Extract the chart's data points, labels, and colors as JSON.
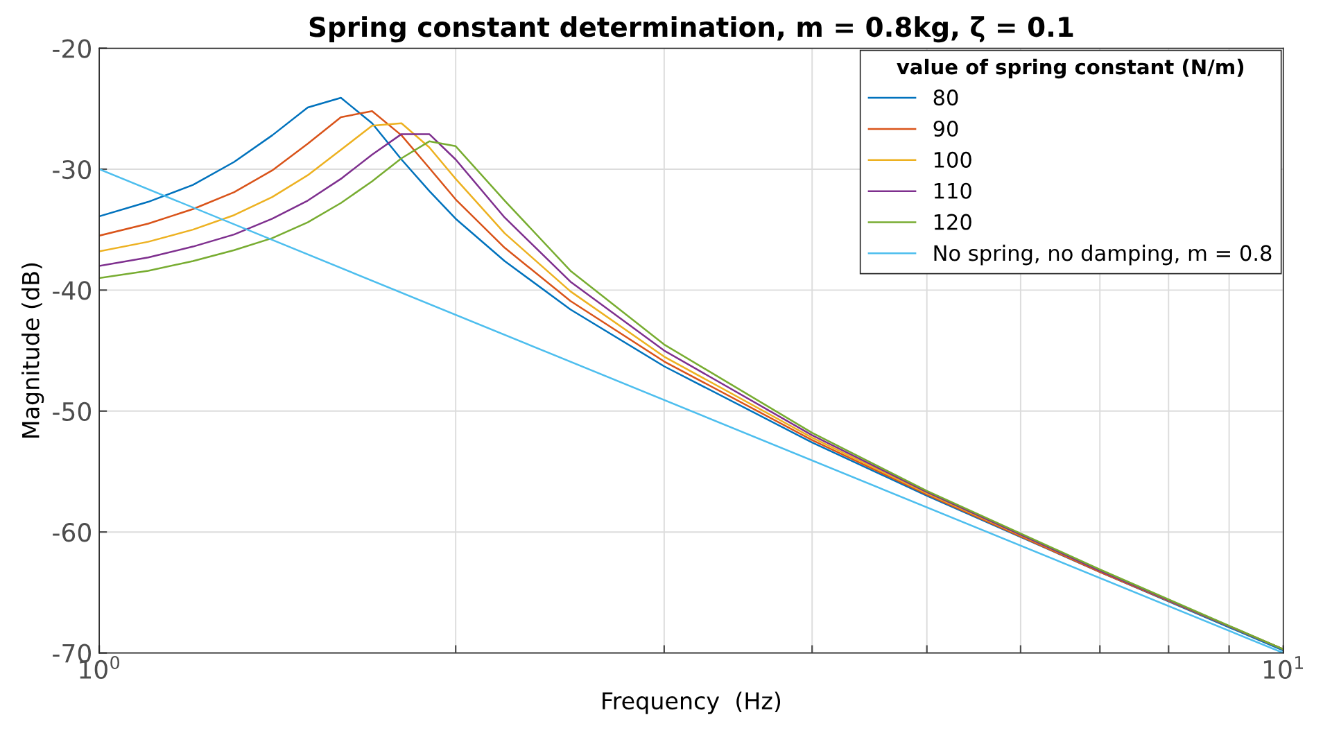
{
  "chart_data": {
    "type": "line",
    "title": "Spring constant determination, m = 0.8kg, ζ = 0.1",
    "xlabel": "Frequency  (Hz)",
    "ylabel": "Magnitude (dB)",
    "legend_title": "value of spring constant (N/m)",
    "legend": "top right",
    "grid": true,
    "log": "x",
    "marker": "none",
    "line_style": "solid",
    "xlim": [
      1,
      10
    ],
    "ylim": [
      -70,
      -20
    ],
    "xticks": [
      {
        "value": 1,
        "label": "10$^{0}$"
      },
      {
        "value": 2,
        "label": null
      },
      {
        "value": 3,
        "label": null
      },
      {
        "value": 4,
        "label": null
      },
      {
        "value": 5,
        "label": null
      },
      {
        "value": 6,
        "label": null
      },
      {
        "value": 7,
        "label": null
      },
      {
        "value": 8,
        "label": null
      },
      {
        "value": 9,
        "label": null
      },
      {
        "value": 10,
        "label": "10$^{1}$"
      }
    ],
    "yticks": [
      -70,
      -60,
      -50,
      -40,
      -30,
      -20
    ],
    "x": [
      1.0,
      1.1,
      1.2,
      1.3,
      1.4,
      1.5,
      1.6,
      1.7,
      1.8,
      1.9,
      2.0,
      2.2,
      2.5,
      3.0,
      4.0,
      5.0,
      7.0,
      10.0
    ],
    "series": [
      {
        "name": "80",
        "color": "#0072bd",
        "values": [
          -33.9,
          -32.7,
          -31.3,
          -29.4,
          -27.2,
          -24.9,
          -24.1,
          -26.2,
          -29.2,
          -31.8,
          -34.1,
          -37.6,
          -41.6,
          -46.3,
          -52.6,
          -57.0,
          -63.3,
          -69.8
        ]
      },
      {
        "name": "90",
        "color": "#d95319",
        "values": [
          -35.5,
          -34.5,
          -33.3,
          -31.9,
          -30.1,
          -27.9,
          -25.7,
          -25.2,
          -27.2,
          -29.9,
          -32.5,
          -36.5,
          -40.9,
          -45.9,
          -52.4,
          -56.9,
          -63.3,
          -69.7
        ]
      },
      {
        "name": "100",
        "color": "#edb120",
        "values": [
          -36.8,
          -36.0,
          -35.0,
          -33.8,
          -32.3,
          -30.5,
          -28.4,
          -26.4,
          -26.2,
          -28.2,
          -30.8,
          -35.3,
          -40.1,
          -45.5,
          -52.2,
          -56.8,
          -63.2,
          -69.7
        ]
      },
      {
        "name": "110",
        "color": "#7e2f8e",
        "values": [
          -38.0,
          -37.3,
          -36.4,
          -35.4,
          -34.1,
          -32.6,
          -30.8,
          -28.8,
          -27.1,
          -27.1,
          -29.2,
          -34.0,
          -39.3,
          -45.0,
          -52.0,
          -56.7,
          -63.2,
          -69.7
        ]
      },
      {
        "name": "120",
        "color": "#77ac30",
        "values": [
          -39.0,
          -38.4,
          -37.6,
          -36.7,
          -35.7,
          -34.4,
          -32.8,
          -31.0,
          -29.1,
          -27.7,
          -28.1,
          -32.6,
          -38.4,
          -44.5,
          -51.8,
          -56.6,
          -63.1,
          -69.7
        ]
      },
      {
        "name": "No spring, no damping, m = 0.8",
        "color": "#4dbeee",
        "x": [
          1.0,
          10.0
        ],
        "values": [
          -30.0,
          -70.0
        ]
      }
    ]
  }
}
